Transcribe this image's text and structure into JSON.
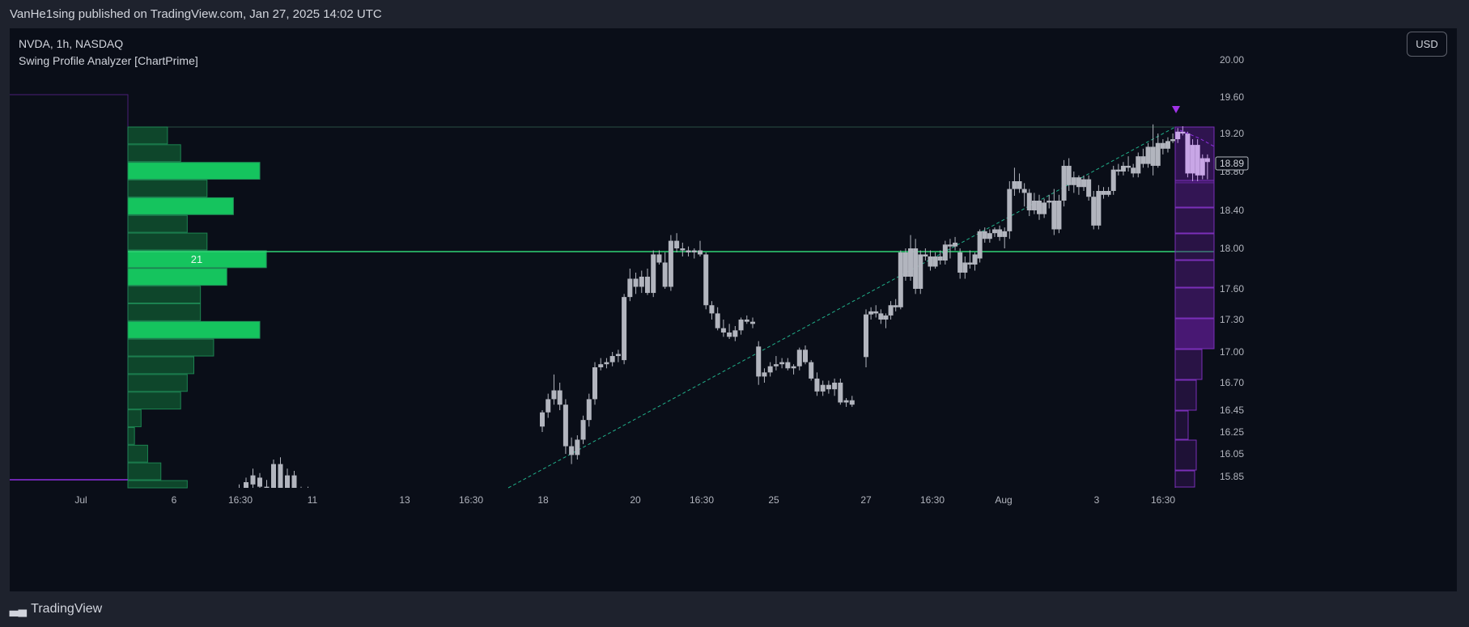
{
  "header": {
    "published": "VanHe1sing published on TradingView.com, Jan 27, 2025 14:02 UTC"
  },
  "legend": {
    "symbol_line": "NVDA, 1h, NASDAQ",
    "indicator": "Swing Profile Analyzer [ChartPrime]"
  },
  "currency_button": "USD",
  "footer": {
    "brand": "TradingView",
    "logo_icon": "tradingview-logo-icon"
  },
  "colors": {
    "background": "#0a0e18",
    "candle": "#b2b5be",
    "volume_bright": "#15c45e",
    "volume_dark": "#0f4d2e",
    "poc_line": "#2fd474",
    "trend_line": "#21b08a",
    "range_purple": "#5b1e8c"
  },
  "chart_data": {
    "type": "candlestick",
    "y_axis_ticks": [
      "20.00",
      "19.60",
      "19.20",
      "18.80",
      "18.40",
      "18.00",
      "17.60",
      "17.30",
      "17.00",
      "16.70",
      "16.45",
      "16.25",
      "16.05",
      "15.85"
    ],
    "last_price": "18.89",
    "x_axis_labels": [
      {
        "label": "Jul"
      },
      {
        "label": "6"
      },
      {
        "label": "16:30"
      },
      {
        "label": "11"
      },
      {
        "label": "13"
      },
      {
        "label": "16:30"
      },
      {
        "label": "18"
      },
      {
        "label": "20"
      },
      {
        "label": "16:30"
      },
      {
        "label": "25"
      },
      {
        "label": "27"
      },
      {
        "label": "16:30"
      },
      {
        "label": "Aug"
      },
      {
        "label": "3"
      },
      {
        "label": "16:30"
      }
    ],
    "volume_profile": {
      "poc_label": "21",
      "rows": [
        {
          "count": 6,
          "poc": false
        },
        {
          "count": 8,
          "poc": false
        },
        {
          "count": 20,
          "poc": false
        },
        {
          "count": 12,
          "poc": false
        },
        {
          "count": 16,
          "poc": false
        },
        {
          "count": 9,
          "poc": false
        },
        {
          "count": 12,
          "poc": false
        },
        {
          "count": 21,
          "poc": true
        },
        {
          "count": 15,
          "poc": false
        },
        {
          "count": 11,
          "poc": false
        },
        {
          "count": 11,
          "poc": false
        },
        {
          "count": 20,
          "poc": false
        },
        {
          "count": 13,
          "poc": false
        },
        {
          "count": 10,
          "poc": false
        },
        {
          "count": 9,
          "poc": false
        },
        {
          "count": 8,
          "poc": false
        },
        {
          "count": 2,
          "poc": false
        },
        {
          "count": 1,
          "poc": false
        },
        {
          "count": 3,
          "poc": false
        },
        {
          "count": 5,
          "poc": false
        },
        {
          "count": 9,
          "poc": false
        }
      ]
    },
    "candles": [
      [
        15.62,
        15.7,
        15.58,
        15.66
      ],
      [
        15.68,
        15.78,
        15.62,
        15.72
      ],
      [
        15.7,
        15.84,
        15.64,
        15.8
      ],
      [
        15.78,
        15.92,
        15.7,
        15.86
      ],
      [
        15.84,
        15.88,
        15.72,
        15.76
      ],
      [
        15.76,
        15.82,
        15.66,
        15.7
      ],
      [
        15.7,
        16.0,
        15.62,
        15.96
      ],
      [
        15.96,
        16.02,
        15.6,
        15.64
      ],
      [
        15.64,
        15.92,
        15.58,
        15.86
      ],
      [
        15.86,
        15.9,
        15.6,
        15.66
      ],
      [
        15.66,
        15.76,
        15.6,
        15.7
      ],
      [
        15.7,
        15.76,
        15.62,
        15.66
      ],
      [
        15.6,
        15.64,
        15.56,
        15.62
      ],
      [
        15.62,
        15.66,
        15.58,
        15.6
      ],
      [
        16.3,
        16.45,
        16.25,
        16.43
      ],
      [
        16.43,
        16.6,
        16.38,
        16.55
      ],
      [
        16.55,
        16.78,
        16.5,
        16.63
      ],
      [
        16.63,
        16.7,
        16.45,
        16.5
      ],
      [
        16.5,
        16.55,
        16.05,
        16.12
      ],
      [
        16.12,
        16.2,
        15.96,
        16.04
      ],
      [
        16.04,
        16.22,
        16.0,
        16.18
      ],
      [
        16.18,
        16.4,
        16.14,
        16.36
      ],
      [
        16.36,
        16.6,
        16.3,
        16.55
      ],
      [
        16.55,
        16.9,
        16.5,
        16.85
      ],
      [
        16.85,
        16.94,
        16.82,
        16.88
      ],
      [
        16.88,
        16.94,
        16.84,
        16.9
      ],
      [
        16.9,
        17.0,
        16.86,
        16.96
      ],
      [
        16.96,
        17.02,
        16.9,
        16.98
      ],
      [
        16.92,
        17.55,
        16.88,
        17.52
      ],
      [
        17.52,
        17.8,
        17.48,
        17.7
      ],
      [
        17.7,
        17.76,
        17.55,
        17.62
      ],
      [
        17.62,
        17.78,
        17.56,
        17.72
      ],
      [
        17.72,
        17.8,
        17.54,
        17.56
      ],
      [
        17.56,
        17.98,
        17.52,
        17.94
      ],
      [
        17.94,
        17.98,
        17.84,
        17.86
      ],
      [
        17.86,
        17.96,
        17.6,
        17.62
      ],
      [
        17.62,
        18.14,
        17.58,
        18.08
      ],
      [
        18.08,
        18.16,
        17.96,
        18.0
      ],
      [
        18.0,
        18.06,
        17.92,
        17.98
      ],
      [
        17.98,
        18.02,
        17.92,
        17.96
      ],
      [
        17.96,
        18.0,
        17.9,
        17.98
      ],
      [
        17.98,
        18.08,
        17.92,
        17.94
      ],
      [
        17.94,
        17.96,
        17.4,
        17.44
      ],
      [
        17.44,
        17.48,
        17.3,
        17.36
      ],
      [
        17.36,
        17.42,
        17.2,
        17.22
      ],
      [
        17.22,
        17.3,
        17.14,
        17.18
      ],
      [
        17.18,
        17.26,
        17.12,
        17.14
      ],
      [
        17.14,
        17.24,
        17.1,
        17.2
      ],
      [
        17.2,
        17.32,
        17.16,
        17.3
      ],
      [
        17.3,
        17.34,
        17.26,
        17.28
      ],
      [
        17.28,
        17.32,
        17.22,
        17.26
      ],
      [
        17.05,
        17.1,
        16.68,
        16.76
      ],
      [
        16.76,
        16.84,
        16.7,
        16.8
      ],
      [
        16.8,
        16.9,
        16.76,
        16.86
      ],
      [
        16.86,
        16.96,
        16.82,
        16.88
      ],
      [
        16.88,
        16.94,
        16.84,
        16.9
      ],
      [
        16.9,
        16.94,
        16.82,
        16.84
      ],
      [
        16.84,
        16.88,
        16.78,
        16.86
      ],
      [
        16.86,
        17.04,
        16.82,
        17.02
      ],
      [
        17.02,
        17.06,
        16.88,
        16.9
      ],
      [
        16.9,
        16.92,
        16.72,
        16.74
      ],
      [
        16.74,
        16.8,
        16.58,
        16.62
      ],
      [
        16.62,
        16.72,
        16.58,
        16.68
      ],
      [
        16.68,
        16.72,
        16.6,
        16.64
      ],
      [
        16.64,
        16.74,
        16.58,
        16.7
      ],
      [
        16.7,
        16.74,
        16.5,
        16.52
      ],
      [
        16.52,
        16.56,
        16.48,
        16.54
      ],
      [
        16.54,
        16.58,
        16.48,
        16.5
      ],
      [
        16.95,
        17.4,
        16.85,
        17.35
      ],
      [
        17.35,
        17.42,
        17.3,
        17.38
      ],
      [
        17.38,
        17.44,
        17.32,
        17.36
      ],
      [
        17.36,
        17.4,
        17.26,
        17.3
      ],
      [
        17.3,
        17.36,
        17.22,
        17.34
      ],
      [
        17.34,
        17.48,
        17.3,
        17.44
      ],
      [
        17.44,
        17.5,
        17.38,
        17.42
      ],
      [
        17.42,
        17.98,
        17.4,
        17.96
      ],
      [
        17.96,
        18.0,
        17.68,
        17.72
      ],
      [
        17.72,
        18.14,
        17.68,
        18.0
      ],
      [
        18.0,
        18.1,
        17.55,
        17.6
      ],
      [
        17.6,
        17.98,
        17.55,
        17.94
      ],
      [
        17.94,
        18.0,
        17.88,
        17.92
      ],
      [
        17.92,
        17.98,
        17.78,
        17.82
      ],
      [
        17.82,
        17.96,
        17.8,
        17.92
      ],
      [
        17.92,
        17.98,
        17.84,
        17.88
      ],
      [
        17.88,
        18.08,
        17.84,
        18.04
      ],
      [
        18.04,
        18.1,
        17.9,
        18.02
      ],
      [
        18.02,
        18.12,
        17.98,
        18.06
      ],
      [
        17.96,
        18.0,
        17.7,
        17.76
      ],
      [
        17.76,
        17.92,
        17.7,
        17.86
      ],
      [
        17.86,
        17.98,
        17.8,
        17.84
      ],
      [
        17.84,
        17.96,
        17.78,
        17.94
      ],
      [
        17.9,
        18.2,
        17.86,
        18.18
      ],
      [
        18.18,
        18.22,
        18.06,
        18.1
      ],
      [
        18.1,
        18.2,
        18.06,
        18.16
      ],
      [
        18.16,
        18.22,
        18.12,
        18.2
      ],
      [
        18.2,
        18.24,
        18.08,
        18.12
      ],
      [
        18.12,
        18.22,
        18.0,
        18.18
      ],
      [
        18.18,
        18.7,
        18.1,
        18.62
      ],
      [
        18.62,
        18.84,
        18.55,
        18.7
      ],
      [
        18.7,
        18.78,
        18.58,
        18.62
      ],
      [
        18.62,
        18.68,
        18.44,
        18.58
      ],
      [
        18.58,
        18.62,
        18.34,
        18.4
      ],
      [
        18.4,
        18.58,
        18.36,
        18.5
      ],
      [
        18.5,
        18.56,
        18.3,
        18.36
      ],
      [
        18.36,
        18.52,
        18.32,
        18.48
      ],
      [
        18.48,
        18.56,
        18.42,
        18.5
      ],
      [
        18.5,
        18.62,
        18.14,
        18.2
      ],
      [
        18.2,
        18.56,
        18.16,
        18.5
      ],
      [
        18.5,
        18.92,
        18.44,
        18.86
      ],
      [
        18.86,
        18.94,
        18.6,
        18.66
      ],
      [
        18.66,
        18.8,
        18.58,
        18.74
      ],
      [
        18.74,
        18.76,
        18.56,
        18.64
      ],
      [
        18.64,
        18.76,
        18.6,
        18.72
      ],
      [
        18.72,
        18.76,
        18.5,
        18.54
      ],
      [
        18.54,
        18.6,
        18.2,
        18.24
      ],
      [
        18.24,
        18.66,
        18.2,
        18.6
      ],
      [
        18.6,
        18.64,
        18.52,
        18.56
      ],
      [
        18.56,
        18.64,
        18.54,
        18.6
      ],
      [
        18.6,
        18.86,
        18.56,
        18.82
      ],
      [
        18.82,
        18.88,
        18.76,
        18.8
      ],
      [
        18.8,
        18.9,
        18.76,
        18.86
      ],
      [
        18.86,
        18.96,
        18.8,
        18.84
      ],
      [
        18.84,
        18.88,
        18.74,
        18.78
      ],
      [
        18.78,
        19.0,
        18.74,
        18.96
      ],
      [
        18.96,
        19.04,
        18.84,
        18.88
      ],
      [
        18.88,
        19.1,
        18.84,
        19.06
      ],
      [
        19.06,
        19.3,
        18.76,
        18.86
      ],
      [
        18.86,
        19.2,
        18.84,
        19.1
      ],
      [
        19.1,
        19.14,
        18.98,
        19.04
      ],
      [
        19.04,
        19.16,
        19.0,
        19.12
      ],
      [
        19.12,
        19.2,
        19.1,
        19.14
      ],
      [
        19.14,
        19.26,
        19.1,
        19.22
      ],
      [
        19.22,
        19.28,
        19.18,
        19.2
      ],
      [
        19.2,
        19.22,
        18.74,
        18.78
      ],
      [
        18.78,
        19.14,
        18.7,
        19.08
      ],
      [
        19.08,
        19.14,
        18.7,
        18.76
      ],
      [
        18.76,
        18.98,
        18.72,
        18.94
      ],
      [
        18.94,
        18.98,
        18.72,
        18.9
      ]
    ]
  }
}
